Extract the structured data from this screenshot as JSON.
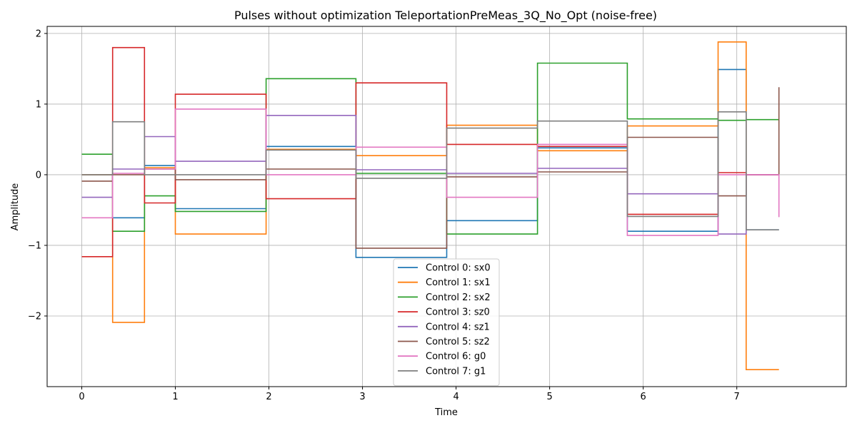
{
  "chart_data": {
    "type": "line",
    "step": "post",
    "title": "Pulses without optimization TeleportationPreMeas_3Q_No_Opt (noise-free)",
    "xlabel": "Time",
    "ylabel": "Amplitude",
    "xlim": [
      -0.37,
      8.17
    ],
    "ylim": [
      -3.0,
      2.1
    ],
    "xticks": [
      0,
      1,
      2,
      3,
      4,
      5,
      6,
      7
    ],
    "yticks": [
      -2,
      -1,
      0,
      1,
      2
    ],
    "ytick_labels": [
      "−2",
      "−1",
      "0",
      "1",
      "2"
    ],
    "grid": true,
    "legend_position": "lower center",
    "time_edges": [
      0,
      0.33,
      0.67,
      1.0,
      1.97,
      2.93,
      3.9,
      4.87,
      5.83,
      6.8,
      7.1,
      7.45
    ],
    "series": [
      {
        "name": "Control 0: sx0",
        "color": "#1f77b4",
        "values": [
          0.0,
          -0.61,
          0.13,
          -0.48,
          0.4,
          -1.17,
          -0.65,
          0.38,
          -0.8,
          1.49,
          -0.78,
          -0.78
        ]
      },
      {
        "name": "Control 1: sx1",
        "color": "#ff7f0e",
        "values": [
          0.0,
          -2.09,
          0.1,
          -0.84,
          0.36,
          0.27,
          0.7,
          0.34,
          0.69,
          1.88,
          -2.76,
          -2.76
        ]
      },
      {
        "name": "Control 2: sx2",
        "color": "#2ca02c",
        "values": [
          0.29,
          -0.8,
          -0.3,
          -0.52,
          1.36,
          0.02,
          -0.84,
          1.58,
          0.79,
          0.77,
          0.78,
          0.78
        ]
      },
      {
        "name": "Control 3: sz0",
        "color": "#d62728",
        "values": [
          -1.16,
          1.8,
          -0.4,
          1.14,
          -0.34,
          1.3,
          0.43,
          0.4,
          -0.56,
          0.03,
          0.0,
          0.0
        ]
      },
      {
        "name": "Control 4: sz1",
        "color": "#9467bd",
        "values": [
          -0.32,
          0.08,
          0.54,
          0.19,
          0.84,
          0.07,
          0.02,
          0.09,
          -0.27,
          -0.84,
          0.0,
          0.0
        ]
      },
      {
        "name": "Control 5: sz2",
        "color": "#8c564b",
        "values": [
          -0.09,
          0.0,
          0.08,
          -0.07,
          0.08,
          -1.04,
          -0.03,
          0.04,
          0.53,
          -0.3,
          0.0,
          1.24
        ]
      },
      {
        "name": "Control 6: g0",
        "color": "#e377c2",
        "values": [
          -0.61,
          0.02,
          0.08,
          0.93,
          0.0,
          0.39,
          -0.32,
          0.43,
          -0.86,
          0.0,
          0.0,
          -0.6
        ]
      },
      {
        "name": "Control 7: g1",
        "color": "#7f7f7f",
        "values": [
          0.0,
          0.75,
          0.0,
          0.0,
          0.35,
          -0.05,
          0.66,
          0.76,
          -0.59,
          0.89,
          -0.78,
          -0.78
        ]
      }
    ]
  }
}
